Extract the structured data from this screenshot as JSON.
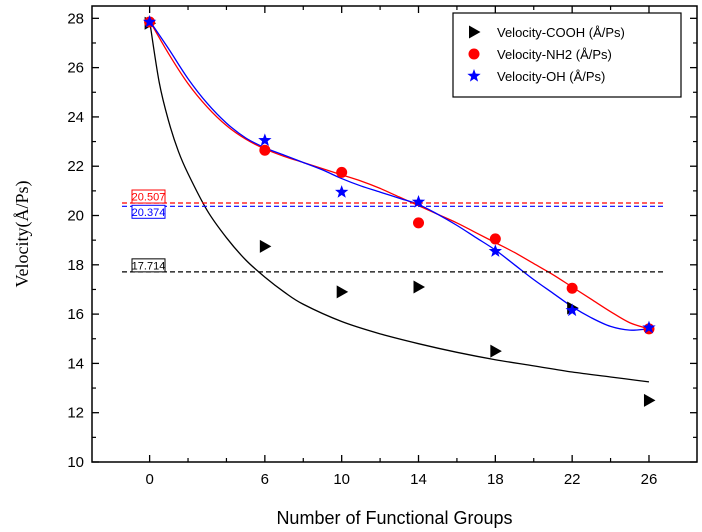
{
  "chart_data": {
    "type": "scatter",
    "title": "",
    "xlabel": "Number of Functional Groups",
    "ylabel": "Velocity(Å/Ps)",
    "xlim": [
      -3,
      28.5
    ],
    "ylim": [
      10,
      28.5
    ],
    "xticks": [
      0,
      6,
      10,
      14,
      18,
      22,
      26
    ],
    "xminor": [
      2,
      4,
      8,
      12,
      16,
      20,
      24
    ],
    "yticks": [
      10,
      12,
      14,
      16,
      18,
      20,
      22,
      24,
      26,
      28
    ],
    "grid": false,
    "legend_position": "top-right",
    "series": [
      {
        "name": "Velocity-COOH (Å/Ps)",
        "marker": "triangle-right",
        "color": "#000000",
        "x": [
          0,
          6,
          10,
          14,
          18,
          22,
          26
        ],
        "y": [
          27.8,
          18.75,
          16.9,
          17.1,
          14.5,
          16.25,
          12.5
        ],
        "fit": {
          "x": [
            0,
            0.5,
            1,
            1.5,
            2,
            3,
            4,
            5,
            6,
            7,
            8,
            10,
            12,
            14,
            16,
            18,
            20,
            22,
            24,
            26
          ],
          "y": [
            27.9,
            25.4,
            23.8,
            22.6,
            21.7,
            20.2,
            19.1,
            18.2,
            17.5,
            16.9,
            16.4,
            15.7,
            15.2,
            14.8,
            14.45,
            14.15,
            13.9,
            13.65,
            13.45,
            13.25
          ]
        },
        "reference": {
          "value": 17.714,
          "label": "17.714"
        }
      },
      {
        "name": "Velocity-NH2 (Å/Ps)",
        "marker": "circle",
        "color": "#ff0000",
        "x": [
          0,
          6,
          10,
          14,
          18,
          22,
          26
        ],
        "y": [
          27.85,
          22.65,
          21.75,
          19.7,
          19.05,
          17.05,
          15.4
        ],
        "fit": {
          "x": [
            0,
            1,
            2,
            3,
            4,
            5,
            6,
            7,
            8,
            9,
            10,
            11,
            12,
            13,
            14,
            15,
            16,
            17,
            18,
            19,
            20,
            21,
            22,
            23,
            24,
            25,
            26
          ],
          "y": [
            27.9,
            26.55,
            25.35,
            24.4,
            23.65,
            23.1,
            22.7,
            22.4,
            22.15,
            21.9,
            21.65,
            21.4,
            21.1,
            20.75,
            20.4,
            20.05,
            19.7,
            19.3,
            18.9,
            18.5,
            18.05,
            17.6,
            17.1,
            16.6,
            16.1,
            15.65,
            15.4
          ]
        },
        "reference": {
          "value": 20.507,
          "label": "20.507"
        }
      },
      {
        "name": "Velocity-OH (Å/Ps)",
        "marker": "star",
        "color": "#0000ff",
        "x": [
          0,
          6,
          10,
          14,
          18,
          22,
          26
        ],
        "y": [
          27.85,
          23.05,
          20.95,
          20.55,
          18.55,
          16.15,
          15.45
        ],
        "fit": {
          "x": [
            0,
            1,
            2,
            3,
            4,
            5,
            6,
            7,
            8,
            9,
            10,
            11,
            12,
            13,
            14,
            15,
            16,
            17,
            18,
            19,
            20,
            21,
            22,
            23,
            24,
            25,
            26
          ],
          "y": [
            27.9,
            26.75,
            25.55,
            24.55,
            23.75,
            23.15,
            22.75,
            22.45,
            22.15,
            21.85,
            21.5,
            21.2,
            20.95,
            20.7,
            20.45,
            20.05,
            19.6,
            19.1,
            18.6,
            18.0,
            17.4,
            16.85,
            16.3,
            15.85,
            15.5,
            15.35,
            15.4
          ]
        },
        "reference": {
          "value": 20.374,
          "label": "20.374"
        }
      }
    ]
  }
}
